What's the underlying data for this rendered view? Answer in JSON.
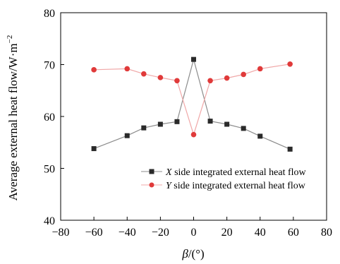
{
  "chart_data": {
    "type": "line",
    "xlabel_italic": "β",
    "xlabel_rest": "/(°)",
    "ylabel": "Average external heat flow/W·m",
    "ylabel_sup": "−2",
    "xlim": [
      -80,
      80
    ],
    "ylim": [
      40,
      80
    ],
    "xticks": [
      "−80",
      "−60",
      "−40",
      "−20",
      "0",
      "20",
      "40",
      "60",
      "80"
    ],
    "xtick_values": [
      -80,
      -60,
      -40,
      -20,
      0,
      20,
      40,
      60,
      80
    ],
    "yticks": [
      "40",
      "50",
      "60",
      "70",
      "80"
    ],
    "ytick_values": [
      40,
      50,
      60,
      70,
      80
    ],
    "legend_position": "lower-right",
    "series": [
      {
        "name": "X side integrated external heat flow",
        "name_italic": "X",
        "name_rest": " side integrated external heat flow",
        "marker": "square",
        "marker_color": "#2a2a2a",
        "line_color": "#8c8c8c",
        "x": [
          -60,
          -40,
          -30,
          -20,
          -10,
          0,
          10,
          20,
          30,
          40,
          58
        ],
        "y": [
          53.8,
          56.3,
          57.8,
          58.5,
          59.0,
          71.0,
          59.1,
          58.5,
          57.7,
          56.2,
          53.7
        ]
      },
      {
        "name": "Y side integrated external heat flow",
        "name_italic": "Y",
        "name_rest": " side integrated external heat flow",
        "marker": "circle",
        "marker_color": "#e03a3a",
        "line_color": "#f0a8a8",
        "x": [
          -60,
          -40,
          -30,
          -20,
          -10,
          0,
          10,
          20,
          30,
          40,
          58
        ],
        "y": [
          69.0,
          69.2,
          68.2,
          67.5,
          66.9,
          56.5,
          66.9,
          67.4,
          68.1,
          69.2,
          70.1
        ]
      }
    ]
  }
}
